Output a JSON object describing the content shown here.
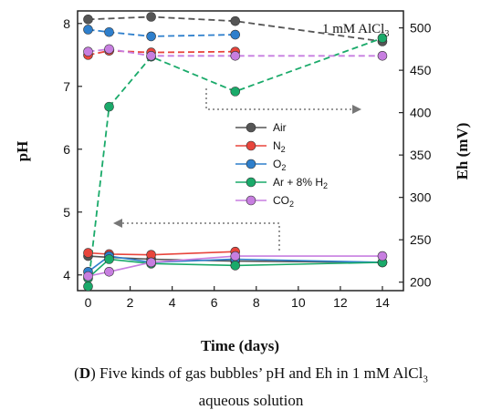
{
  "caption": {
    "panel_letter": "D",
    "line1_rest": "Five kinds of gas bubbles’ pH and Eh in 1 mM AlCl",
    "line1_subscript": "3",
    "line2": "aqueous solution"
  },
  "chart_data": {
    "type": "line",
    "annotation": {
      "text": "1 mM AlCl",
      "subscript": "3"
    },
    "xlabel": "Time (days)",
    "ylabel_left": "pH",
    "ylabel_right": "Eh (mV)",
    "x_ticks": [
      0,
      2,
      4,
      6,
      8,
      10,
      12,
      14
    ],
    "y_left_ticks": [
      4,
      5,
      6,
      7,
      8
    ],
    "y_right_ticks": [
      200,
      250,
      300,
      350,
      400,
      450,
      500
    ],
    "xlim": [
      -0.5,
      15
    ],
    "ylim_left": [
      3.75,
      8.2
    ],
    "ylim_right": [
      190,
      520
    ],
    "legend_position": "center-right",
    "series": [
      {
        "name": "Air",
        "legend_main": "Air",
        "legend_sub": "",
        "legend_rest": "",
        "color": "#555555",
        "ph": {
          "x": [
            0,
            1,
            3,
            7,
            14
          ],
          "y": [
            4.3,
            4.28,
            4.25,
            4.22,
            4.2
          ]
        },
        "eh": {
          "x": [
            0,
            3,
            7,
            14
          ],
          "y": [
            510,
            513,
            508,
            484
          ]
        }
      },
      {
        "name": "N2",
        "legend_main": "N",
        "legend_sub": "2",
        "legend_rest": "",
        "color": "#e8453c",
        "ph": {
          "x": [
            0,
            1,
            3,
            7
          ],
          "y": [
            4.35,
            4.33,
            4.32,
            4.37
          ]
        },
        "eh": {
          "x": [
            0,
            1,
            3,
            7
          ],
          "y": [
            468,
            473,
            471,
            472
          ]
        }
      },
      {
        "name": "O2",
        "legend_main": "O",
        "legend_sub": "2",
        "legend_rest": "",
        "color": "#2e7fcc",
        "ph": {
          "x": [
            0,
            1,
            3,
            7,
            14
          ],
          "y": [
            4.05,
            4.3,
            4.2,
            4.25,
            4.2
          ]
        },
        "eh": {
          "x": [
            0,
            1,
            3,
            7
          ],
          "y": [
            498,
            495,
            490,
            492
          ]
        }
      },
      {
        "name": "Ar + 8% H2",
        "legend_main": "Ar + 8% H",
        "legend_sub": "2",
        "legend_rest": "",
        "color": "#1aaa6a",
        "ph": {
          "x": [
            0,
            1,
            3,
            7,
            14
          ],
          "y": [
            3.95,
            4.25,
            4.18,
            4.15,
            4.2
          ]
        },
        "eh": {
          "x": [
            0,
            1,
            3,
            7,
            14
          ],
          "y": [
            195,
            407,
            466,
            425,
            488
          ]
        }
      },
      {
        "name": "CO2",
        "legend_main": "CO",
        "legend_sub": "2",
        "legend_rest": "",
        "color": "#c77ee0",
        "ph": {
          "x": [
            0,
            1,
            3,
            7,
            14
          ],
          "y": [
            3.98,
            4.05,
            4.2,
            4.3,
            4.3
          ]
        },
        "eh": {
          "x": [
            0,
            1,
            3,
            7,
            14
          ],
          "y": [
            472,
            475,
            467,
            467,
            467
          ]
        }
      }
    ]
  }
}
